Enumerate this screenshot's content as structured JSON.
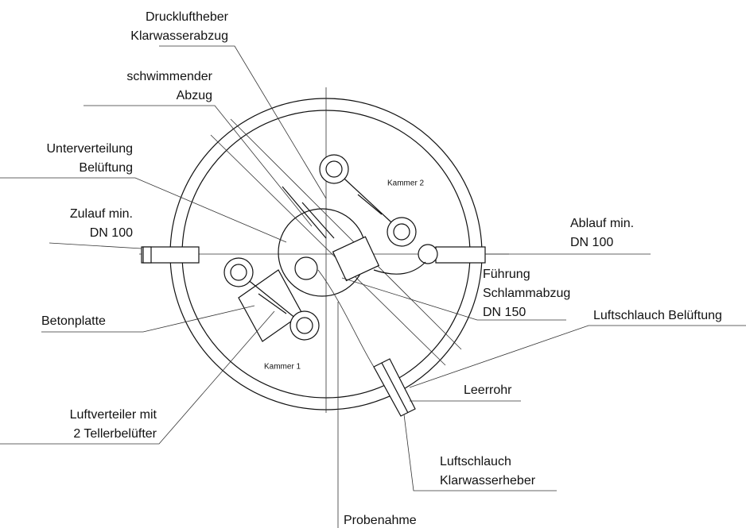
{
  "labels": [
    {
      "lines": [
        "Druckluftheber",
        "Klarwasserabzug"
      ]
    },
    {
      "lines": [
        "schwimmender",
        "Abzug"
      ]
    },
    {
      "lines": [
        "Unterverteilung",
        "Belüftung"
      ]
    },
    {
      "lines": [
        "Zulauf min.",
        "DN 100"
      ]
    },
    {
      "lines": [
        "Ablauf min.",
        "DN 100"
      ]
    },
    {
      "lines": [
        "Führung",
        "Schlammabzug",
        "DN 150"
      ]
    },
    {
      "lines": [
        "Betonplatte"
      ]
    },
    {
      "lines": [
        "Luftschlauch Belüftung"
      ]
    },
    {
      "lines": [
        "Leerrohr"
      ]
    },
    {
      "lines": [
        "Luftverteiler mit",
        "2 Tellerbelüfter"
      ]
    },
    {
      "lines": [
        "Luftschlauch",
        "Klarwasserheber"
      ]
    },
    {
      "lines": [
        "Probenahme"
      ]
    },
    {
      "lines": [
        "Kammer 2"
      ]
    },
    {
      "lines": [
        "Kammer 1"
      ]
    }
  ]
}
